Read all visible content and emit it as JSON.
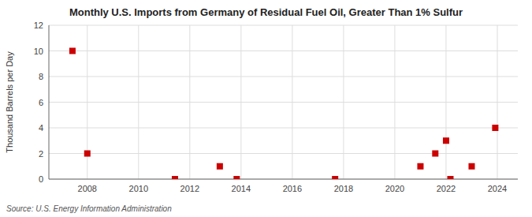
{
  "chart_data": {
    "type": "scatter",
    "title": "Monthly U.S. Imports from Germany of Residual Fuel Oil, Greater Than 1% Sulfur",
    "ylabel": "Thousand Barrels per Day",
    "source": "Source: U.S. Energy Information Administration",
    "x": [
      2007.42,
      2008.0,
      2011.42,
      2013.17,
      2013.83,
      2017.67,
      2021.0,
      2021.58,
      2022.0,
      2022.17,
      2023.0,
      2023.92
    ],
    "values": [
      10,
      2,
      0,
      1,
      0,
      0,
      1,
      2,
      3,
      0,
      1,
      4
    ],
    "color": "#cc0000",
    "marker": "square",
    "xlim": [
      2006.5,
      2024.8
    ],
    "ylim": [
      0,
      12
    ],
    "xticks": [
      2008,
      2010,
      2012,
      2014,
      2016,
      2018,
      2020,
      2022,
      2024
    ],
    "yticks": [
      0,
      2,
      4,
      6,
      8,
      10,
      12
    ],
    "grid": true
  }
}
